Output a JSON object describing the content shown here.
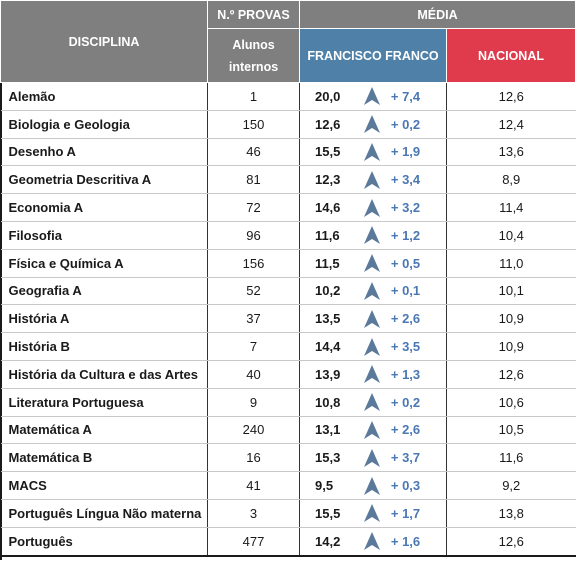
{
  "header": {
    "disciplina": "DISCIPLINA",
    "n_provas": "N.º PROVAS",
    "alunos": "Alunos",
    "internos": "internos",
    "media": "MÉDIA",
    "francisco_franco": "FRANCISCO FRANCO",
    "nacional": "NACIONAL"
  },
  "colors": {
    "grey_header": "#7f7f7f",
    "blue_header": "#4f81a8",
    "red_header": "#e03a4d",
    "diff_text": "#4a78b5",
    "arrow": "#5b7a9b"
  },
  "icon": "up-arrow-icon",
  "rows": [
    {
      "disciplina": "Alemão",
      "provas": "1",
      "ff": "20,0",
      "diff": "+ 7,4",
      "nacional": "12,6"
    },
    {
      "disciplina": "Biologia e Geologia",
      "provas": "150",
      "ff": "12,6",
      "diff": "+ 0,2",
      "nacional": "12,4"
    },
    {
      "disciplina": "Desenho A",
      "provas": "46",
      "ff": "15,5",
      "diff": "+ 1,9",
      "nacional": "13,6"
    },
    {
      "disciplina": "Geometria Descritiva A",
      "provas": "81",
      "ff": "12,3",
      "diff": "+ 3,4",
      "nacional": "8,9"
    },
    {
      "disciplina": "Economia A",
      "provas": "72",
      "ff": "14,6",
      "diff": "+ 3,2",
      "nacional": "11,4"
    },
    {
      "disciplina": "Filosofia",
      "provas": "96",
      "ff": "11,6",
      "diff": "+ 1,2",
      "nacional": "10,4"
    },
    {
      "disciplina": "Física e Química A",
      "provas": "156",
      "ff": "11,5",
      "diff": "+ 0,5",
      "nacional": "11,0"
    },
    {
      "disciplina": "Geografia A",
      "provas": "52",
      "ff": "10,2",
      "diff": "+ 0,1",
      "nacional": "10,1"
    },
    {
      "disciplina": "História A",
      "provas": "37",
      "ff": "13,5",
      "diff": "+ 2,6",
      "nacional": "10,9"
    },
    {
      "disciplina": "História B",
      "provas": "7",
      "ff": "14,4",
      "diff": "+ 3,5",
      "nacional": "10,9"
    },
    {
      "disciplina": "História da Cultura e das Artes",
      "provas": "40",
      "ff": "13,9",
      "diff": "+ 1,3",
      "nacional": "12,6"
    },
    {
      "disciplina": "Literatura Portuguesa",
      "provas": "9",
      "ff": "10,8",
      "diff": "+ 0,2",
      "nacional": "10,6"
    },
    {
      "disciplina": "Matemática A",
      "provas": "240",
      "ff": "13,1",
      "diff": "+ 2,6",
      "nacional": "10,5"
    },
    {
      "disciplina": "Matemática B",
      "provas": "16",
      "ff": "15,3",
      "diff": "+ 3,7",
      "nacional": "11,6"
    },
    {
      "disciplina": "MACS",
      "provas": "41",
      "ff": "9,5",
      "diff": "+ 0,3",
      "nacional": "9,2"
    },
    {
      "disciplina": "Português Língua Não materna",
      "provas": "3",
      "ff": "15,5",
      "diff": "+ 1,7",
      "nacional": "13,8"
    },
    {
      "disciplina": "Português",
      "provas": "477",
      "ff": "14,2",
      "diff": "+ 1,6",
      "nacional": "12,6"
    }
  ]
}
